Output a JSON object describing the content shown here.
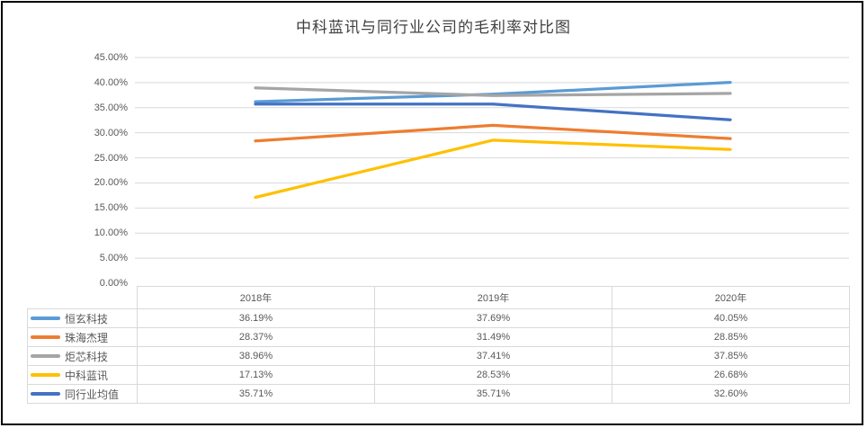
{
  "chart_data": {
    "type": "line",
    "title": "中科蓝讯与同行业公司的毛利率对比图",
    "categories": [
      "2018年",
      "2019年",
      "2020年"
    ],
    "series": [
      {
        "name": "恒玄科技",
        "color": "#5B9BD5",
        "values": [
          36.19,
          37.69,
          40.05
        ],
        "labels": [
          "36.19%",
          "37.69%",
          "40.05%"
        ]
      },
      {
        "name": "珠海杰理",
        "color": "#ED7D31",
        "values": [
          28.37,
          31.49,
          28.85
        ],
        "labels": [
          "28.37%",
          "31.49%",
          "28.85%"
        ]
      },
      {
        "name": "炬芯科技",
        "color": "#A5A5A5",
        "values": [
          38.96,
          37.41,
          37.85
        ],
        "labels": [
          "38.96%",
          "37.41%",
          "37.85%"
        ]
      },
      {
        "name": "中科蓝讯",
        "color": "#FFC000",
        "values": [
          17.13,
          28.53,
          26.68
        ],
        "labels": [
          "17.13%",
          "28.53%",
          "26.68%"
        ]
      },
      {
        "name": "同行业均值",
        "color": "#4472C4",
        "values": [
          35.71,
          35.71,
          32.6
        ],
        "labels": [
          "35.71%",
          "35.71%",
          "32.60%"
        ]
      }
    ],
    "y_axis": {
      "min": 0,
      "max": 45,
      "step": 5,
      "tick_labels": [
        "0.00%",
        "5.00%",
        "10.00%",
        "15.00%",
        "20.00%",
        "25.00%",
        "30.00%",
        "35.00%",
        "40.00%",
        "45.00%"
      ]
    },
    "ylim": [
      0,
      45
    ],
    "grid": true,
    "legend_position": "data-table-left",
    "data_table": true
  },
  "colors": {
    "grid": "#D9D9D9",
    "table_border": "#D9D9D9",
    "axis_text": "#595959",
    "title_text": "#404040",
    "frame_border": "#000000"
  }
}
